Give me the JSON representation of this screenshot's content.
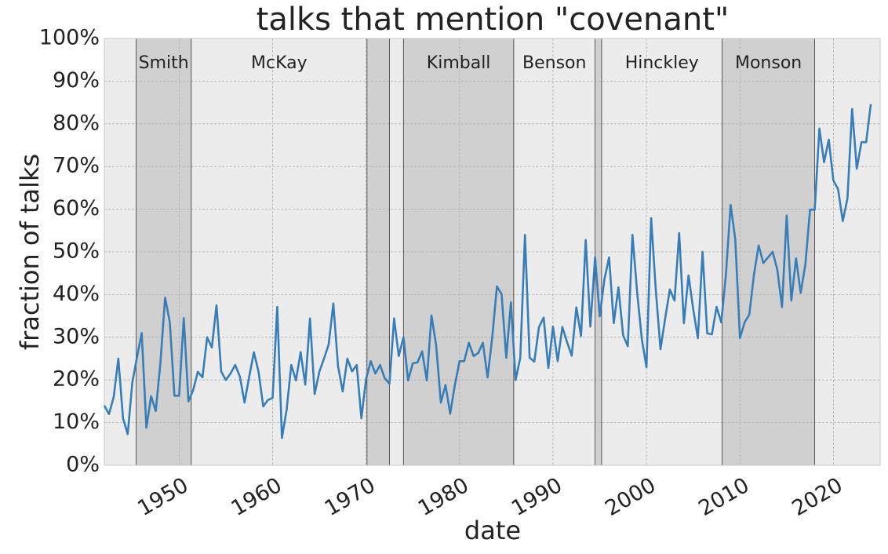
{
  "chart_data": {
    "type": "line",
    "title": "talks that mention \"covenant\"",
    "x_label": "date",
    "y_label": "fraction of talks",
    "xlim": [
      1942,
      2025
    ],
    "ylim": [
      0,
      100
    ],
    "xticks": [
      1950,
      1960,
      1970,
      1980,
      1990,
      2000,
      2010,
      2020
    ],
    "yticks": [
      {
        "value": 0,
        "label": "0%"
      },
      {
        "value": 10,
        "label": "10%"
      },
      {
        "value": 20,
        "label": "20%"
      },
      {
        "value": 30,
        "label": "30%"
      },
      {
        "value": 40,
        "label": "40%"
      },
      {
        "value": 50,
        "label": "50%"
      },
      {
        "value": 60,
        "label": "60%"
      },
      {
        "value": 70,
        "label": "70%"
      },
      {
        "value": 80,
        "label": "80%"
      },
      {
        "value": 90,
        "label": "90%"
      },
      {
        "value": 100,
        "label": "100%"
      }
    ],
    "grid": true,
    "eras": [
      {
        "start": 1942,
        "end": 1945.4,
        "label": null,
        "color": "#ececec"
      },
      {
        "start": 1945.4,
        "end": 1951.3,
        "label": "Smith",
        "color": "#d0d0d0"
      },
      {
        "start": 1951.3,
        "end": 1970.1,
        "label": "McKay",
        "color": "#ececec"
      },
      {
        "start": 1970.1,
        "end": 1972.5,
        "label": null,
        "color": "#d0d0d0"
      },
      {
        "start": 1972.5,
        "end": 1974.0,
        "label": null,
        "color": "#ececec"
      },
      {
        "start": 1974.0,
        "end": 1985.8,
        "label": "Kimball",
        "color": "#d0d0d0"
      },
      {
        "start": 1985.8,
        "end": 1994.5,
        "label": "Benson",
        "color": "#ececec"
      },
      {
        "start": 1994.5,
        "end": 1995.2,
        "label": null,
        "color": "#d0d0d0"
      },
      {
        "start": 1995.2,
        "end": 2008.1,
        "label": "Hinckley",
        "color": "#ececec"
      },
      {
        "start": 2008.1,
        "end": 2018.0,
        "label": "Monson",
        "color": "#d0d0d0"
      },
      {
        "start": 2018.0,
        "end": 2025,
        "label": null,
        "color": "#ececec"
      }
    ],
    "x": [
      1942,
      1942.5,
      1943,
      1943.5,
      1944,
      1944.5,
      1945,
      1945.5,
      1946,
      1946.5,
      1947,
      1947.5,
      1948,
      1948.5,
      1949,
      1949.5,
      1950,
      1950.5,
      1951,
      1951.5,
      1952,
      1952.5,
      1953,
      1953.5,
      1954,
      1954.5,
      1955,
      1955.5,
      1956,
      1956.5,
      1957,
      1957.5,
      1958,
      1958.5,
      1959,
      1959.5,
      1960,
      1960.5,
      1961,
      1961.5,
      1962,
      1962.5,
      1963,
      1963.5,
      1964,
      1964.5,
      1965,
      1965.5,
      1966,
      1966.5,
      1967,
      1967.5,
      1968,
      1968.5,
      1969,
      1969.5,
      1970,
      1970.5,
      1971,
      1971.5,
      1972,
      1972.5,
      1973,
      1973.5,
      1974,
      1974.5,
      1975,
      1975.5,
      1976,
      1976.5,
      1977,
      1977.5,
      1978,
      1978.5,
      1979,
      1979.5,
      1980,
      1980.5,
      1981,
      1981.5,
      1982,
      1982.5,
      1983,
      1983.5,
      1984,
      1984.5,
      1985,
      1985.5,
      1986,
      1986.5,
      1987,
      1987.5,
      1988,
      1988.5,
      1989,
      1989.5,
      1990,
      1990.5,
      1991,
      1991.5,
      1992,
      1992.5,
      1993,
      1993.5,
      1994,
      1994.5,
      1995,
      1995.5,
      1996,
      1996.5,
      1997,
      1997.5,
      1998,
      1998.5,
      1999,
      1999.5,
      2000,
      2000.5,
      2001,
      2001.5,
      2002,
      2002.5,
      2003,
      2003.5,
      2004,
      2004.5,
      2005,
      2005.5,
      2006,
      2006.5,
      2007,
      2007.5,
      2008,
      2008.5,
      2009,
      2009.5,
      2010,
      2010.5,
      2011,
      2011.5,
      2012,
      2012.5,
      2013,
      2013.5,
      2014,
      2014.5,
      2015,
      2015.5,
      2016,
      2016.5,
      2017,
      2017.5,
      2018,
      2018.5,
      2019,
      2019.5,
      2020,
      2020.5,
      2021,
      2021.5,
      2022,
      2022.5,
      2023,
      2023.5,
      2024
    ],
    "series": [
      {
        "name": "covenant",
        "color": "#377eb8",
        "values": [
          14,
          12,
          16,
          25,
          11,
          7.3,
          19.5,
          25.4,
          31,
          8.8,
          16.2,
          12.7,
          24,
          39.3,
          33.6,
          16.3,
          16.3,
          34.5,
          15,
          17.6,
          21.9,
          20.6,
          30,
          27.6,
          37.5,
          22,
          20,
          21.5,
          23.5,
          20.8,
          14.7,
          20.8,
          26.5,
          21.9,
          13.8,
          15.3,
          15.8,
          37.1,
          6.4,
          13,
          23.5,
          19.9,
          26.5,
          18.9,
          34.4,
          16.7,
          21.9,
          25,
          28.3,
          37.9,
          23.3,
          17.3,
          25,
          22,
          23.5,
          11,
          20.2,
          24.4,
          21.5,
          23.5,
          20.4,
          19.1,
          34.4,
          25.6,
          30,
          19.9,
          23.9,
          24.1,
          26.7,
          19.9,
          35.1,
          28.1,
          14.7,
          18.8,
          12.1,
          18.8,
          24.4,
          24.4,
          28.7,
          25.6,
          26.3,
          28.7,
          20.6,
          30,
          41.9,
          40.1,
          25.2,
          38.2,
          20,
          25.2,
          54,
          25.2,
          24.3,
          32.4,
          34.6,
          22.8,
          32.5,
          24.4,
          32.4,
          28.9,
          25.7,
          37,
          30.3,
          52.8,
          32.5,
          48.7,
          34.9,
          43.6,
          48.7,
          33.3,
          41.7,
          30.5,
          27.9,
          54,
          40.6,
          29.6,
          23,
          57.9,
          41,
          27.2,
          34.4,
          41.2,
          38.6,
          54.4,
          33.3,
          44.5,
          36.6,
          29.8,
          50,
          30.9,
          30.7,
          37.1,
          33.5,
          44.7,
          61,
          52.9,
          29.8,
          33.5,
          35.3,
          44.7,
          51.5,
          47.4,
          48.7,
          50,
          45.8,
          37.1,
          58.5,
          38.6,
          48.5,
          40.4,
          47.1,
          59.9,
          59.9,
          78.9,
          71,
          76.3,
          66.7,
          64.7,
          57.2,
          62.5,
          83.5,
          69.5,
          75.7,
          75.7,
          84.6
        ]
      }
    ]
  }
}
